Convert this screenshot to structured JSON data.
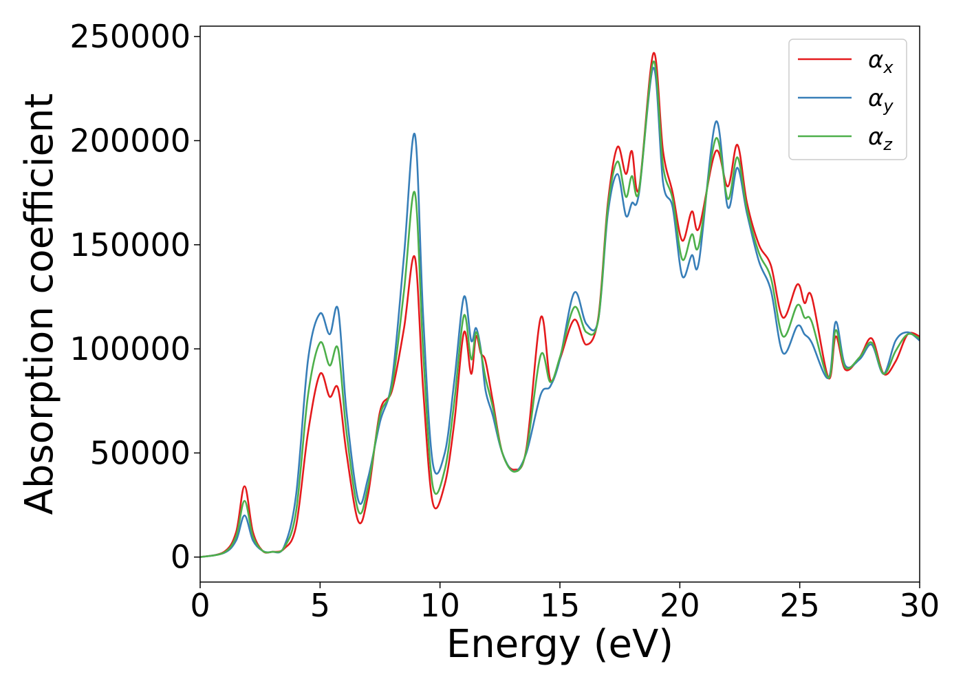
{
  "chart_data": {
    "type": "line",
    "title": "",
    "xlabel": "Energy (eV)",
    "ylabel": "Absorption coefficient",
    "xlim": [
      0,
      30
    ],
    "ylim": [
      -12000,
      255000
    ],
    "xticks": [
      0,
      5,
      10,
      15,
      20,
      25,
      30
    ],
    "yticks": [
      0,
      50000,
      100000,
      150000,
      200000,
      250000
    ],
    "grid": false,
    "legend": "top-right",
    "series": [
      {
        "name": "α_x",
        "symbol": "α",
        "subscript": "x",
        "color": "#e41a1c",
        "x": [
          0,
          1.0,
          1.5,
          1.85,
          2.2,
          2.6,
          3.0,
          3.5,
          4.0,
          4.5,
          5.0,
          5.4,
          5.75,
          6.1,
          6.6,
          7.0,
          7.5,
          8.0,
          8.5,
          8.95,
          9.3,
          9.7,
          10.2,
          10.6,
          11.0,
          11.3,
          11.5,
          11.7,
          11.9,
          12.2,
          12.6,
          13.1,
          13.6,
          14.2,
          14.6,
          15.0,
          15.6,
          16.1,
          16.6,
          17.0,
          17.4,
          17.75,
          18.0,
          18.3,
          18.9,
          19.3,
          19.7,
          20.1,
          20.5,
          20.8,
          21.5,
          22.0,
          22.4,
          22.8,
          23.3,
          23.8,
          24.3,
          24.9,
          25.2,
          25.5,
          26.2,
          26.5,
          26.9,
          27.5,
          28.0,
          28.5,
          29.0,
          29.5,
          30.0
        ],
        "y": [
          0,
          2500,
          12000,
          34000,
          12000,
          3000,
          2500,
          4000,
          15000,
          60000,
          88000,
          77000,
          81000,
          50000,
          17000,
          30000,
          70000,
          80000,
          110000,
          144000,
          80000,
          26000,
          35000,
          65000,
          108000,
          88000,
          106000,
          98000,
          94000,
          75000,
          50000,
          42000,
          52000,
          115000,
          85000,
          95000,
          114000,
          102000,
          115000,
          170000,
          197000,
          184000,
          195000,
          177000,
          242000,
          195000,
          175000,
          152000,
          166000,
          158000,
          195000,
          178000,
          198000,
          170000,
          150000,
          140000,
          115000,
          131000,
          122000,
          125000,
          86000,
          106000,
          90000,
          96000,
          105000,
          88000,
          94000,
          107000,
          106000
        ]
      },
      {
        "name": "α_y",
        "symbol": "α",
        "subscript": "y",
        "color": "#377eb8",
        "x": [
          0,
          1.0,
          1.5,
          1.85,
          2.2,
          2.6,
          3.0,
          3.5,
          4.0,
          4.5,
          5.0,
          5.4,
          5.75,
          6.1,
          6.6,
          7.0,
          7.5,
          8.0,
          8.5,
          8.95,
          9.3,
          9.7,
          10.2,
          10.6,
          11.0,
          11.3,
          11.5,
          11.7,
          11.9,
          12.2,
          12.6,
          13.1,
          13.6,
          14.2,
          14.6,
          15.0,
          15.6,
          16.1,
          16.6,
          17.0,
          17.4,
          17.75,
          18.0,
          18.3,
          18.9,
          19.3,
          19.7,
          20.1,
          20.5,
          20.8,
          21.5,
          22.0,
          22.4,
          22.8,
          23.3,
          23.8,
          24.3,
          24.9,
          25.2,
          25.5,
          26.2,
          26.5,
          26.9,
          27.5,
          28.0,
          28.5,
          29.0,
          29.5,
          30.0
        ],
        "y": [
          0,
          2000,
          8000,
          20000,
          8000,
          3000,
          2500,
          5000,
          30000,
          95000,
          117000,
          107000,
          119000,
          70000,
          27000,
          38000,
          65000,
          85000,
          145000,
          203000,
          115000,
          45000,
          50000,
          85000,
          125000,
          104000,
          110000,
          100000,
          80000,
          68000,
          50000,
          41000,
          50000,
          78000,
          82000,
          95000,
          127000,
          112000,
          114000,
          165000,
          184000,
          164000,
          170000,
          175000,
          235000,
          180000,
          168000,
          135000,
          145000,
          142000,
          209000,
          168000,
          187000,
          165000,
          142000,
          128000,
          98000,
          111000,
          107000,
          103000,
          86000,
          113000,
          92000,
          95000,
          102000,
          88000,
          104000,
          108000,
          104000
        ]
      },
      {
        "name": "α_z",
        "symbol": "α",
        "subscript": "z",
        "color": "#4daf4a",
        "x": [
          0,
          1.0,
          1.5,
          1.85,
          2.2,
          2.6,
          3.0,
          3.5,
          4.0,
          4.5,
          5.0,
          5.4,
          5.75,
          6.1,
          6.6,
          7.0,
          7.5,
          8.0,
          8.5,
          8.95,
          9.3,
          9.7,
          10.2,
          10.6,
          11.0,
          11.3,
          11.5,
          11.7,
          11.9,
          12.2,
          12.6,
          13.1,
          13.6,
          14.2,
          14.6,
          15.0,
          15.6,
          16.1,
          16.6,
          17.0,
          17.4,
          17.75,
          18.0,
          18.3,
          18.9,
          19.3,
          19.7,
          20.1,
          20.5,
          20.8,
          21.5,
          22.0,
          22.4,
          22.8,
          23.3,
          23.8,
          24.3,
          24.9,
          25.2,
          25.5,
          26.2,
          26.5,
          26.9,
          27.5,
          28.0,
          28.5,
          29.0,
          29.5,
          30.0
        ],
        "y": [
          0,
          2200,
          10000,
          27000,
          10000,
          3000,
          2500,
          4500,
          22000,
          78000,
          103000,
          92000,
          100000,
          60000,
          22000,
          34000,
          68000,
          82000,
          128000,
          175000,
          98000,
          34000,
          42000,
          75000,
          116000,
          95000,
          108000,
          99000,
          86000,
          72000,
          50000,
          41000,
          51000,
          97000,
          84000,
          96000,
          120000,
          108000,
          114000,
          168000,
          190000,
          173000,
          183000,
          176000,
          238000,
          188000,
          172000,
          143000,
          155000,
          150000,
          201000,
          172000,
          192000,
          167000,
          146000,
          134000,
          106000,
          121000,
          115000,
          113000,
          86000,
          109000,
          91000,
          96000,
          103000,
          88000,
          99000,
          107000,
          105000
        ]
      }
    ]
  }
}
